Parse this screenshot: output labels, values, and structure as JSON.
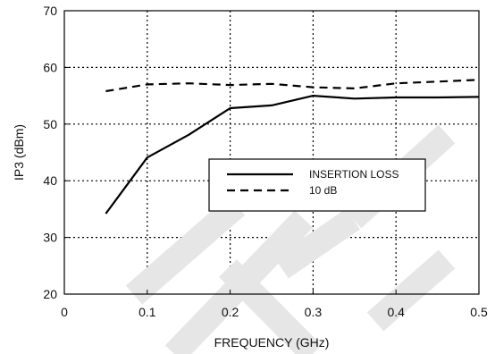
{
  "chart_data": {
    "type": "line",
    "title": "",
    "xlabel": "FREQUENCY (GHz)",
    "ylabel": "IP3 (dBm)",
    "xlim": [
      0,
      0.5
    ],
    "ylim": [
      20,
      70
    ],
    "x_ticks": [
      0,
      0.1,
      0.2,
      0.3,
      0.4,
      0.5
    ],
    "x_tick_labels": [
      "0",
      "0.1",
      "0.2",
      "0.3",
      "0.4",
      "0.5"
    ],
    "y_ticks": [
      20,
      30,
      40,
      50,
      60,
      70
    ],
    "y_tick_labels": [
      "20",
      "30",
      "40",
      "50",
      "60",
      "70"
    ],
    "grid": true,
    "grid_style": "dotted",
    "legend_placement": "center-right",
    "series": [
      {
        "name": "INSERTION LOSS",
        "line_style": "solid",
        "color": "#000000",
        "x": [
          0.05,
          0.1,
          0.15,
          0.2,
          0.25,
          0.3,
          0.35,
          0.4,
          0.45,
          0.5
        ],
        "y": [
          34.2,
          44.1,
          48.1,
          52.8,
          53.3,
          55.0,
          54.5,
          54.7,
          54.7,
          54.8
        ]
      },
      {
        "name": "10 dB",
        "line_style": "dashed",
        "color": "#000000",
        "x": [
          0.05,
          0.1,
          0.15,
          0.2,
          0.25,
          0.3,
          0.35,
          0.4,
          0.45,
          0.5
        ],
        "y": [
          55.8,
          57.0,
          57.2,
          56.9,
          57.1,
          56.5,
          56.3,
          57.2,
          57.5,
          57.8
        ]
      }
    ]
  },
  "watermark": {
    "color": "#e6e6e6"
  }
}
